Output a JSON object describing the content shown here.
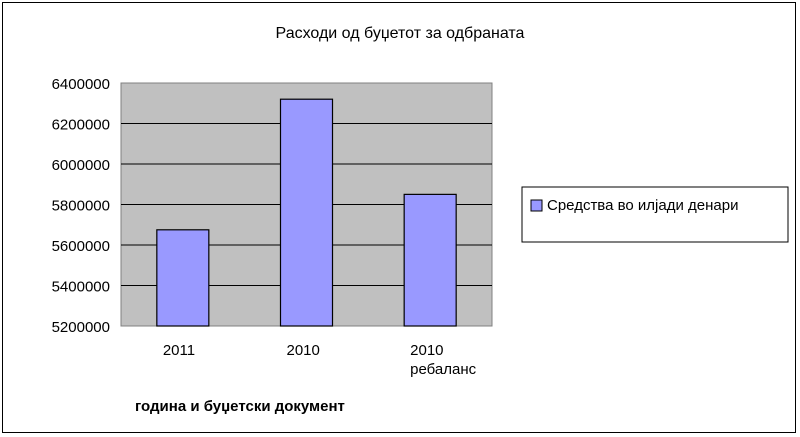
{
  "chart_data": {
    "type": "bar",
    "title": "Расходи од буџетот за одбраната",
    "xlabel": "година и буџетски документ",
    "ylabel": "",
    "categories": [
      [
        "2011"
      ],
      [
        "2010"
      ],
      [
        "2010",
        "ребаланс"
      ]
    ],
    "series": [
      {
        "name": "Средства во илјади денари",
        "values": [
          5675000,
          6320000,
          5850000
        ],
        "color": "#9999FF"
      }
    ],
    "ylim": [
      5200000,
      6400000
    ],
    "yticks": [
      "5200000",
      "5400000",
      "5600000",
      "5800000",
      "6000000",
      "6200000",
      "6400000"
    ],
    "grid": true,
    "legend": "right",
    "plot_background": "#C0C0C0"
  }
}
